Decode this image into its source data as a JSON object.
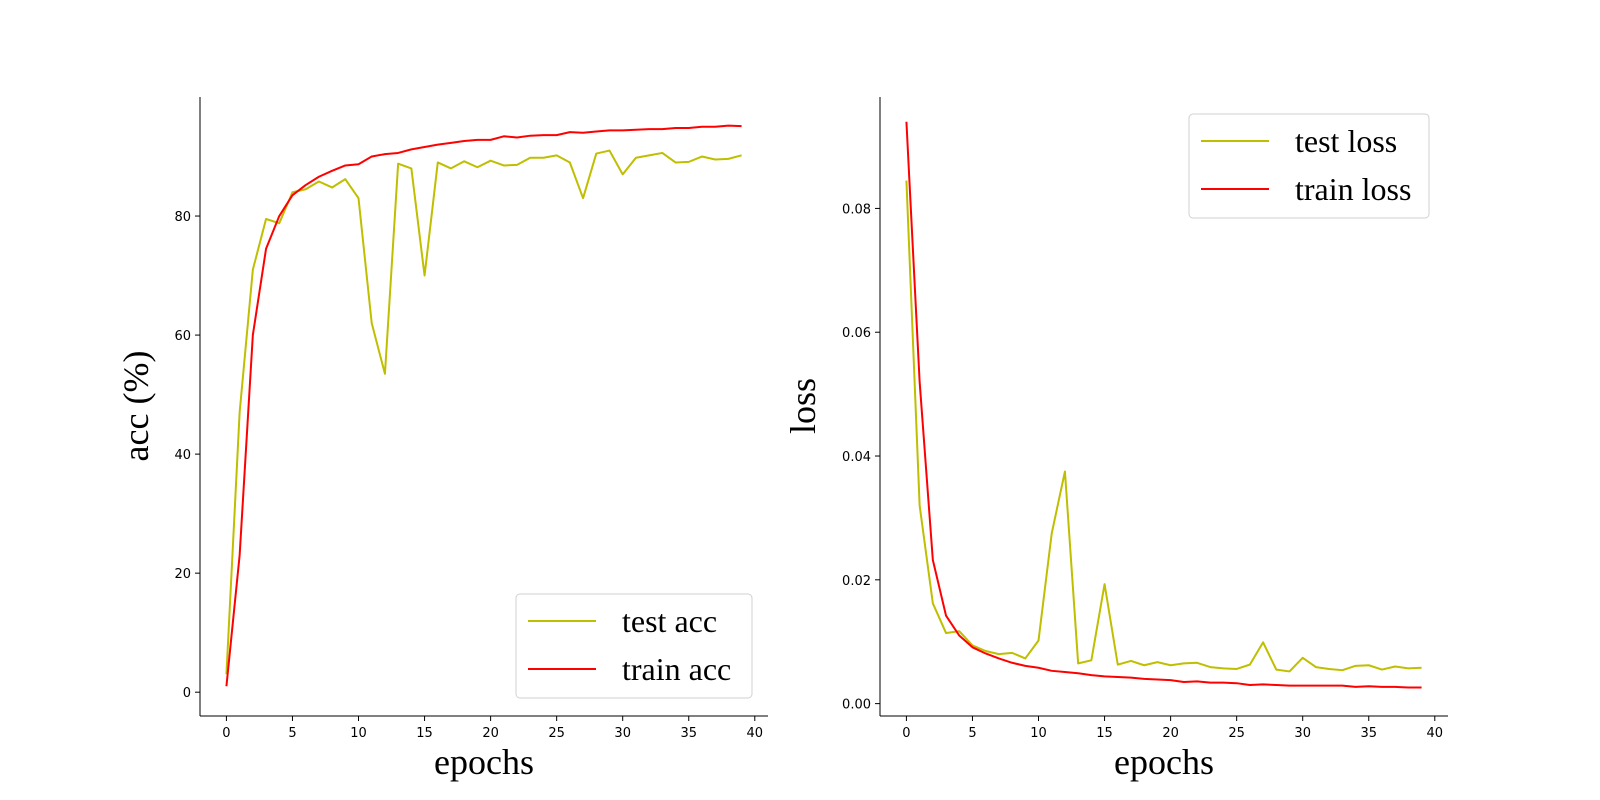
{
  "chart_data": [
    {
      "type": "line",
      "xlabel": "epochs",
      "ylabel": "acc (%)",
      "xlim": [
        -2,
        41
      ],
      "ylim": [
        -4,
        100
      ],
      "xticks": [
        "0",
        "5",
        "10",
        "15",
        "20",
        "25",
        "30",
        "35",
        "40"
      ],
      "yticks": [
        "0",
        "20",
        "40",
        "60",
        "80"
      ],
      "legend_position": "bottom-right",
      "grid": false,
      "series": [
        {
          "name": "test acc",
          "color": "#bfbf00",
          "x": [
            0,
            1,
            2,
            3,
            4,
            5,
            6,
            7,
            8,
            9,
            10,
            11,
            12,
            13,
            14,
            15,
            16,
            17,
            18,
            19,
            20,
            21,
            22,
            23,
            24,
            25,
            26,
            27,
            28,
            29,
            30,
            31,
            32,
            33,
            34,
            35,
            36,
            37,
            38,
            39
          ],
          "values": [
            3,
            47,
            71,
            79.5,
            78.8,
            84,
            84.5,
            85.8,
            84.8,
            86.2,
            83,
            62,
            53.5,
            88.8,
            88,
            70,
            89,
            88,
            89.2,
            88.2,
            89.3,
            88.5,
            88.6,
            89.8,
            89.8,
            90.2,
            89,
            83,
            90.5,
            91,
            87,
            89.8,
            90.2,
            90.6,
            89,
            89.1,
            90,
            89.5,
            89.6,
            90.2
          ]
        },
        {
          "name": "train acc",
          "color": "#ff0000",
          "x": [
            0,
            1,
            2,
            3,
            4,
            5,
            6,
            7,
            8,
            9,
            10,
            11,
            12,
            13,
            14,
            15,
            16,
            17,
            18,
            19,
            20,
            21,
            22,
            23,
            24,
            25,
            26,
            27,
            28,
            29,
            30,
            31,
            32,
            33,
            34,
            35,
            36,
            37,
            38,
            39
          ],
          "values": [
            1,
            23,
            60,
            74.5,
            80,
            83.5,
            85.2,
            86.6,
            87.6,
            88.5,
            88.7,
            90,
            90.4,
            90.6,
            91.2,
            91.6,
            92,
            92.3,
            92.6,
            92.8,
            92.8,
            93.4,
            93.2,
            93.5,
            93.6,
            93.6,
            94.1,
            94,
            94.2,
            94.4,
            94.4,
            94.5,
            94.6,
            94.6,
            94.8,
            94.8,
            95,
            95,
            95.2,
            95.1
          ]
        }
      ]
    },
    {
      "type": "line",
      "xlabel": "epochs",
      "ylabel": "loss",
      "xlim": [
        -2,
        41
      ],
      "ylim": [
        -0.002,
        0.098
      ],
      "xticks": [
        "0",
        "5",
        "10",
        "15",
        "20",
        "25",
        "30",
        "35",
        "40"
      ],
      "yticks": [
        "0.00",
        "0.02",
        "0.04",
        "0.06",
        "0.08"
      ],
      "legend_position": "top-right",
      "grid": false,
      "series": [
        {
          "name": "test loss",
          "color": "#bfbf00",
          "x": [
            0,
            1,
            2,
            3,
            4,
            5,
            6,
            7,
            8,
            9,
            10,
            11,
            12,
            13,
            14,
            15,
            16,
            17,
            18,
            19,
            20,
            21,
            22,
            23,
            24,
            25,
            26,
            27,
            28,
            29,
            30,
            31,
            32,
            33,
            34,
            35,
            36,
            37,
            38,
            39
          ],
          "values": [
            0.0845,
            0.032,
            0.0162,
            0.0114,
            0.0117,
            0.0094,
            0.0085,
            0.008,
            0.0082,
            0.0073,
            0.0102,
            0.0275,
            0.0375,
            0.0065,
            0.007,
            0.0193,
            0.0063,
            0.0069,
            0.0062,
            0.0067,
            0.0062,
            0.0065,
            0.0066,
            0.0059,
            0.0057,
            0.0056,
            0.0063,
            0.0099,
            0.0055,
            0.0052,
            0.0074,
            0.0059,
            0.0056,
            0.0054,
            0.0061,
            0.0062,
            0.0055,
            0.006,
            0.0057,
            0.0058
          ]
        },
        {
          "name": "train loss",
          "color": "#ff0000",
          "x": [
            0,
            1,
            2,
            3,
            4,
            5,
            6,
            7,
            8,
            9,
            10,
            11,
            12,
            13,
            14,
            15,
            16,
            17,
            18,
            19,
            20,
            21,
            22,
            23,
            24,
            25,
            26,
            27,
            28,
            29,
            30,
            31,
            32,
            33,
            34,
            35,
            36,
            37,
            38,
            39
          ],
          "values": [
            0.094,
            0.052,
            0.0232,
            0.0142,
            0.011,
            0.0091,
            0.0081,
            0.0073,
            0.0066,
            0.0061,
            0.0058,
            0.0053,
            0.0051,
            0.0049,
            0.0046,
            0.0044,
            0.0043,
            0.0042,
            0.004,
            0.0039,
            0.0038,
            0.0035,
            0.0036,
            0.0034,
            0.0034,
            0.0033,
            0.003,
            0.0031,
            0.003,
            0.0029,
            0.0029,
            0.0029,
            0.0029,
            0.0029,
            0.0027,
            0.0028,
            0.0027,
            0.0027,
            0.0026,
            0.0026
          ]
        }
      ]
    }
  ]
}
